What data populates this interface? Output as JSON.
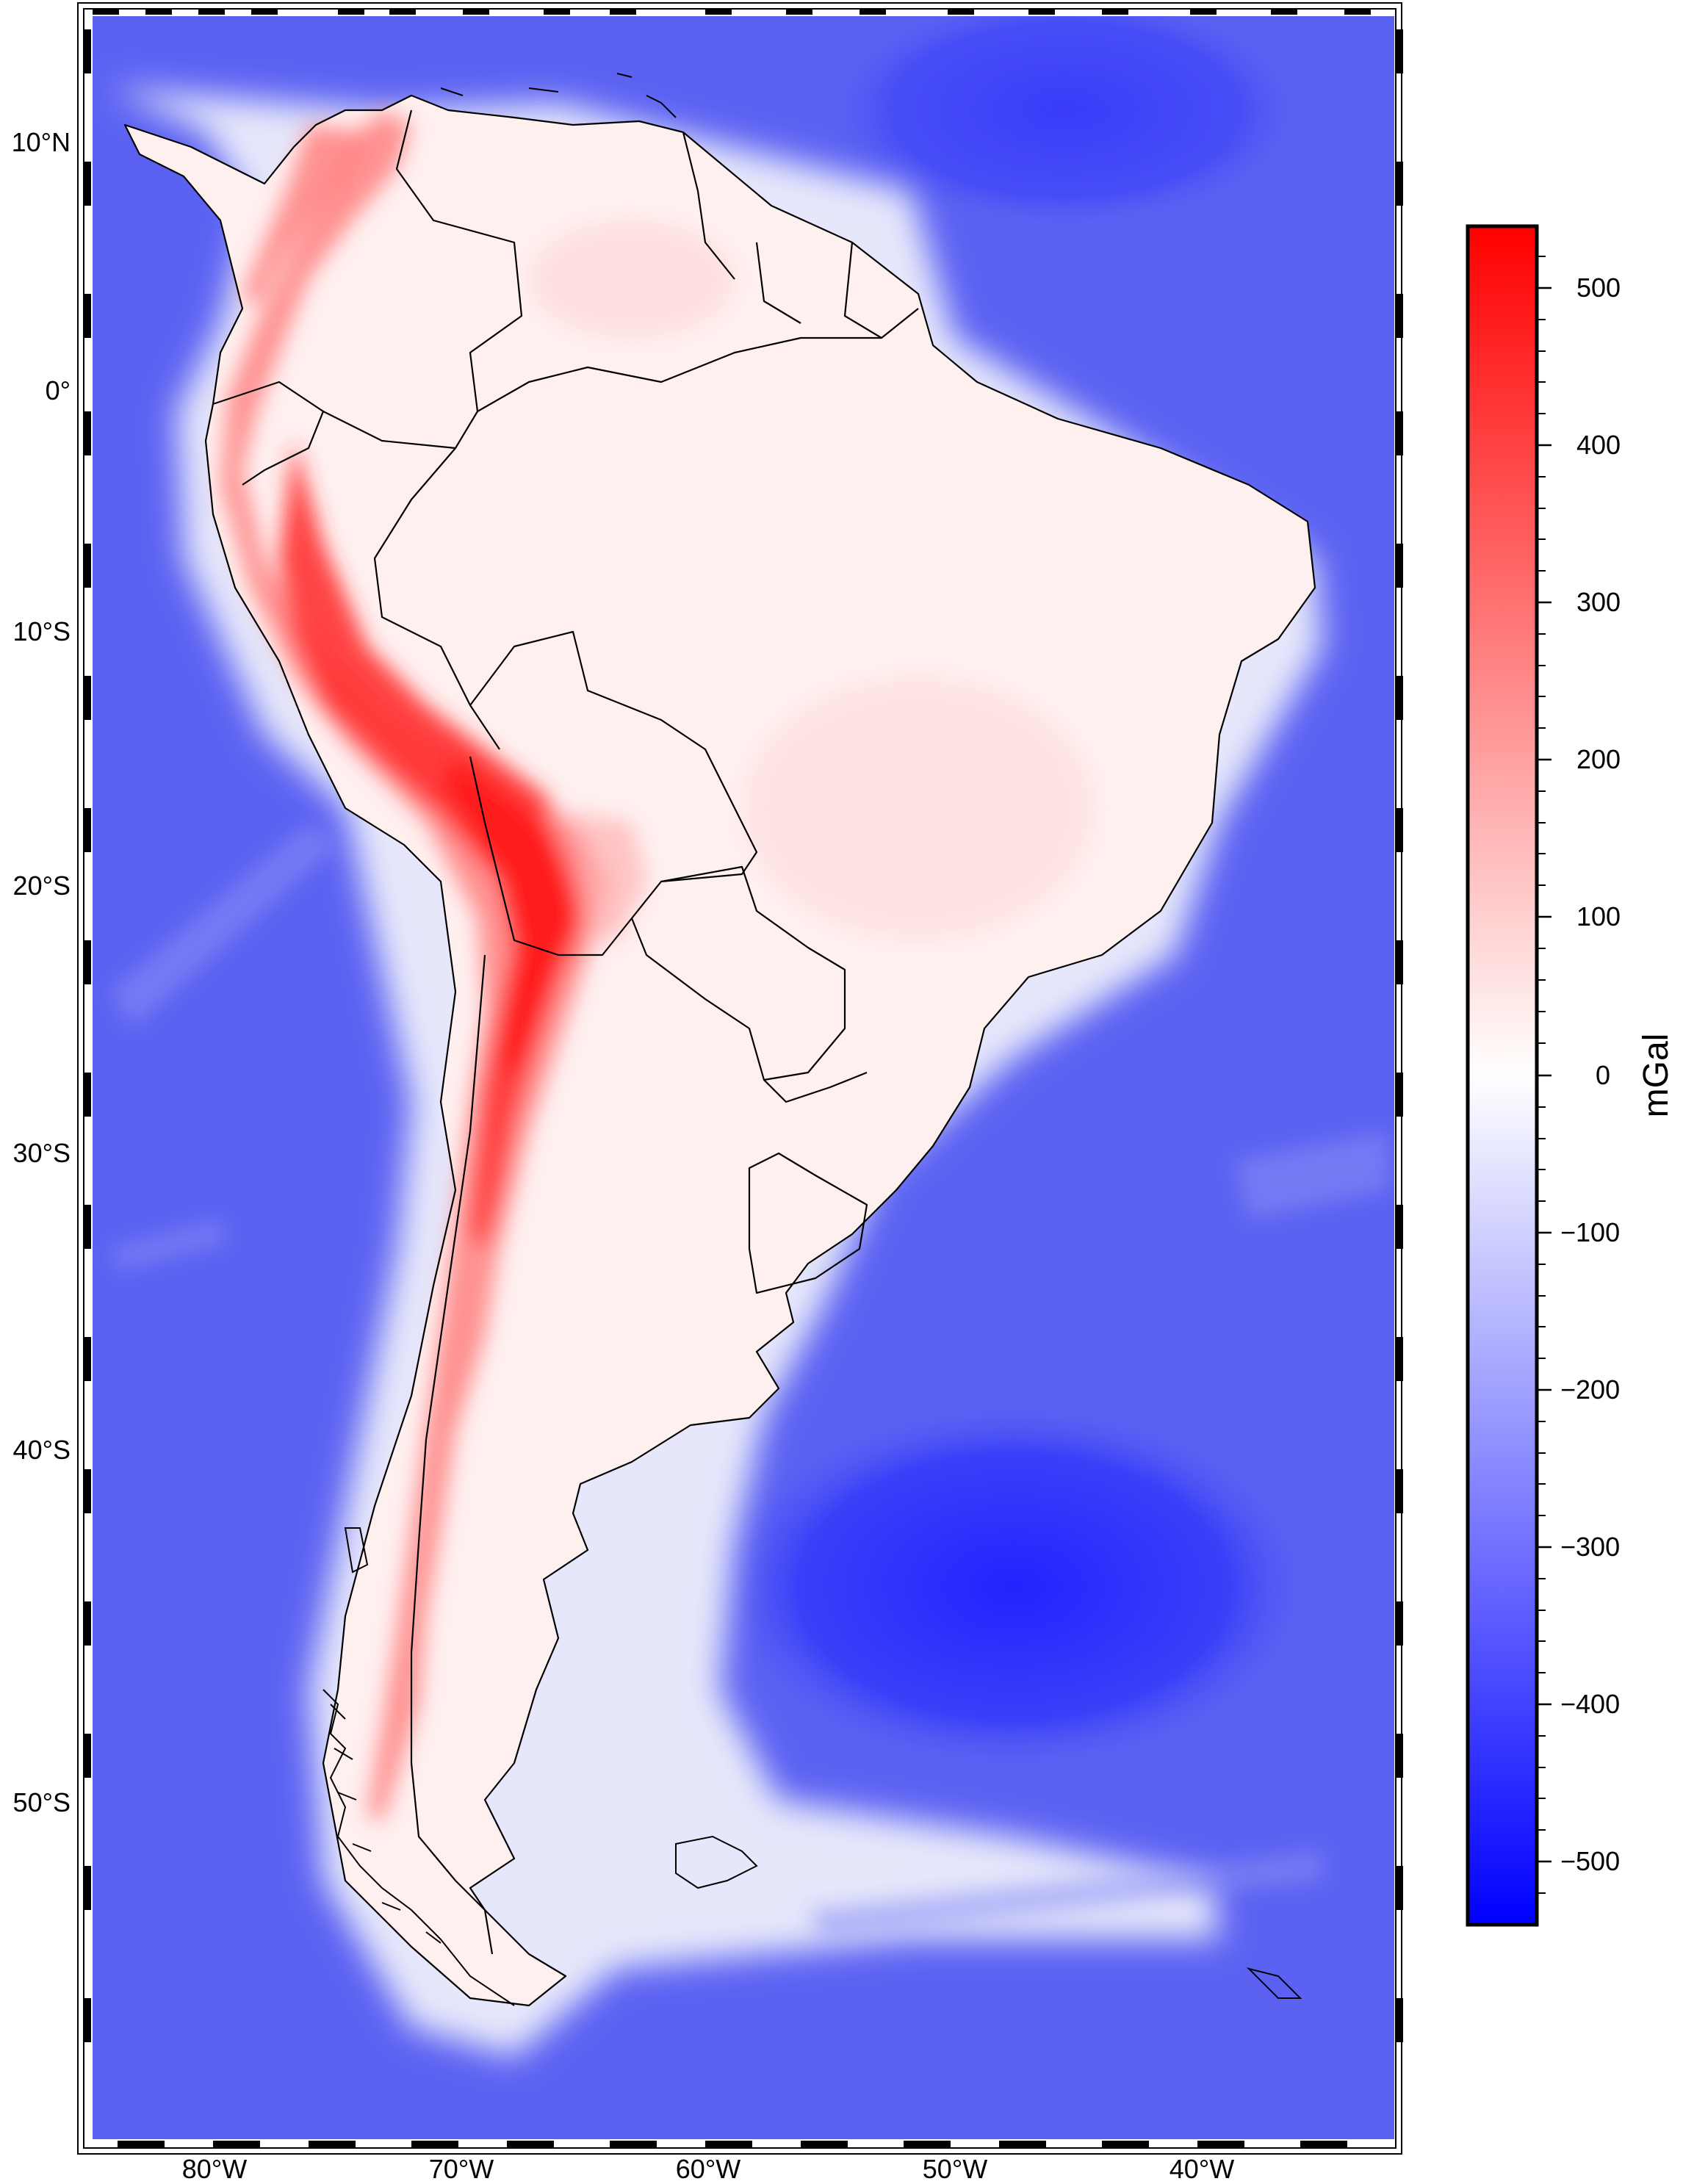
{
  "map": {
    "longitude_labels": [
      "80°W",
      "70°W",
      "60°W",
      "50°W",
      "40°W"
    ],
    "latitude_labels": [
      "10°N",
      "0°",
      "10°S",
      "20°S",
      "30°S",
      "40°S",
      "50°S"
    ],
    "colormap": {
      "low": "#0000ff",
      "mid": "#ffffff",
      "high": "#ff0000"
    },
    "ocean_color": "#5b62f2",
    "land_color": "#fff0f0",
    "border_color": "#000000"
  },
  "colorbar": {
    "unit": "mGal",
    "ticks": [
      "500",
      "400",
      "300",
      "200",
      "100",
      "0",
      "−100",
      "−200",
      "−300",
      "−400",
      "−500"
    ]
  }
}
